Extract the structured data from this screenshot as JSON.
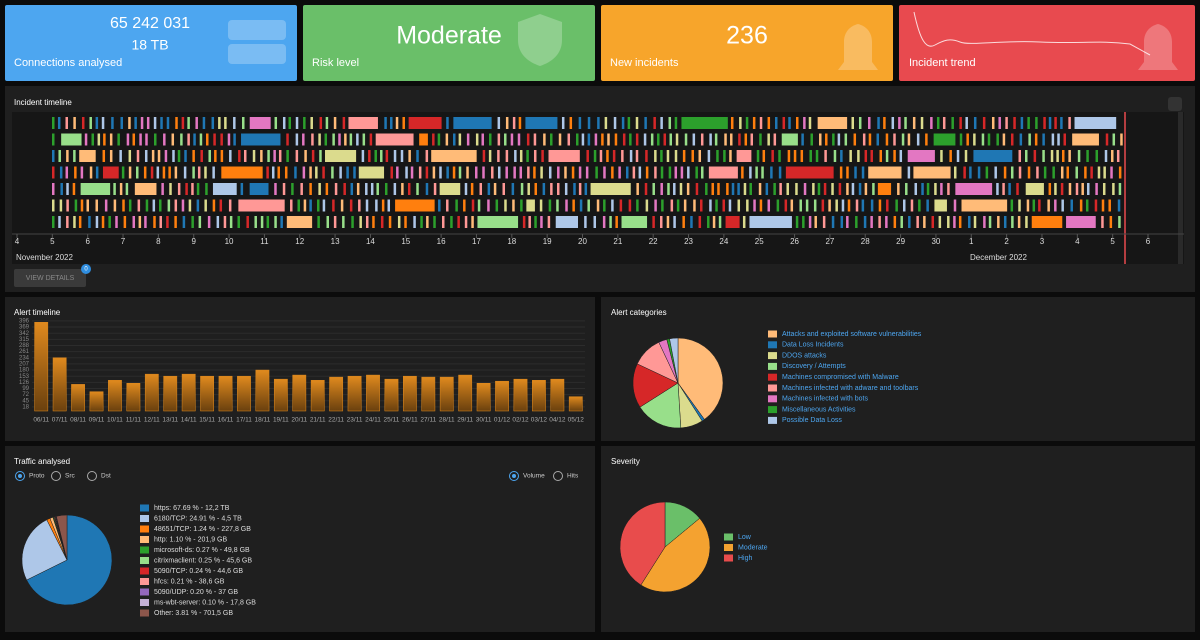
{
  "cards": [
    {
      "values": [
        "65 242 031",
        "18 TB"
      ],
      "label": "Connections analysed",
      "color": "#4da6f0"
    },
    {
      "values": [
        "Moderate"
      ],
      "label": "Risk level",
      "color": "#6abf69"
    },
    {
      "values": [
        "236"
      ],
      "label": "New incidents",
      "color": "#f7a52b"
    },
    {
      "values": [],
      "label": "Incident trend",
      "color": "#e84a4f"
    }
  ],
  "incident_timeline": {
    "title": "Incident timeline",
    "days": [
      4,
      5,
      6,
      7,
      8,
      9,
      10,
      11,
      12,
      13,
      14,
      15,
      16,
      17,
      18,
      19,
      20,
      21,
      22,
      23,
      24,
      25,
      26,
      27,
      28,
      29,
      30,
      1,
      2,
      3,
      4,
      5,
      6
    ],
    "months": [
      "November 2022",
      "December 2022"
    ],
    "button": "VIEW DETAILS",
    "badge": "0"
  },
  "chart_data": [
    {
      "type": "bar",
      "title": "Alert timeline",
      "categories": [
        "06/11",
        "07/11",
        "08/11",
        "09/11",
        "10/11",
        "11/11",
        "12/11",
        "13/11",
        "14/11",
        "15/11",
        "16/11",
        "17/11",
        "18/11",
        "19/11",
        "20/11",
        "21/11",
        "22/11",
        "23/11",
        "24/11",
        "25/11",
        "26/11",
        "27/11",
        "28/11",
        "29/11",
        "30/11",
        "01/12",
        "02/12",
        "03/12",
        "04/12",
        "05/12"
      ],
      "values": [
        390,
        234,
        117,
        85,
        135,
        122,
        162,
        153,
        162,
        153,
        153,
        153,
        180,
        140,
        158,
        135,
        149,
        153,
        158,
        140,
        153,
        149,
        149,
        158,
        122,
        131,
        140,
        135,
        140,
        63
      ],
      "color": "#e08a1e",
      "ylim": [
        0,
        400
      ],
      "yticks": [
        18,
        45,
        72,
        99,
        126,
        153,
        180,
        207,
        234,
        261,
        288,
        315,
        342,
        369,
        396
      ]
    },
    {
      "type": "pie",
      "title": "Alert categories",
      "labels": [
        "Attacks and exploited software vulnerabilities",
        "Data Loss Incidents",
        "DDOS attacks",
        "Discovery / Attempts",
        "Machines compromised with Malware",
        "Machines infected with adware and toolbars",
        "Machines infected with bots",
        "Miscellaneous Activities",
        "Possible Data Loss"
      ],
      "values": [
        40,
        1,
        8,
        17,
        16,
        11,
        3,
        1,
        3
      ],
      "colors": [
        "#ffbb78",
        "#1f77b4",
        "#dbdb8d",
        "#98df8a",
        "#d62728",
        "#ff9896",
        "#e377c2",
        "#2ca02c",
        "#aec7e8"
      ]
    },
    {
      "type": "pie",
      "title": "Traffic analysed",
      "options": [
        "Proto",
        "Src",
        "Dst"
      ],
      "metrics": [
        "Volume",
        "Hits"
      ],
      "labels": [
        "https: 67.69 % - 12,2 TB",
        "6180/TCP: 24.91 % - 4,5 TB",
        "48651/TCP: 1.24 % - 227,8 GB",
        "http: 1.10 % - 201,9 GB",
        "microsoft-ds: 0.27 % - 49,8 GB",
        "citrixmaclient: 0.25 % - 45,6 GB",
        "5090/TCP: 0.24 % - 44,6 GB",
        "hfcs: 0.21 % - 38,6 GB",
        "5090/UDP: 0.20 % - 37 GB",
        "ms-wbt-server: 0.10 % - 17,8 GB",
        "Other: 3.81 % - 701,5 GB"
      ],
      "values": [
        67.69,
        24.91,
        1.24,
        1.1,
        0.27,
        0.25,
        0.24,
        0.21,
        0.2,
        0.1,
        3.81
      ],
      "colors": [
        "#1f77b4",
        "#aec7e8",
        "#ff7f0e",
        "#ffbb78",
        "#2ca02c",
        "#98df8a",
        "#d62728",
        "#ff9896",
        "#9467bd",
        "#c5b0d5",
        "#8c564b"
      ]
    },
    {
      "type": "pie",
      "title": "Severity",
      "labels": [
        "Low",
        "Moderate",
        "High"
      ],
      "values": [
        14,
        45,
        41
      ],
      "colors": [
        "#6abf69",
        "#f4a230",
        "#e84c4c"
      ]
    }
  ]
}
